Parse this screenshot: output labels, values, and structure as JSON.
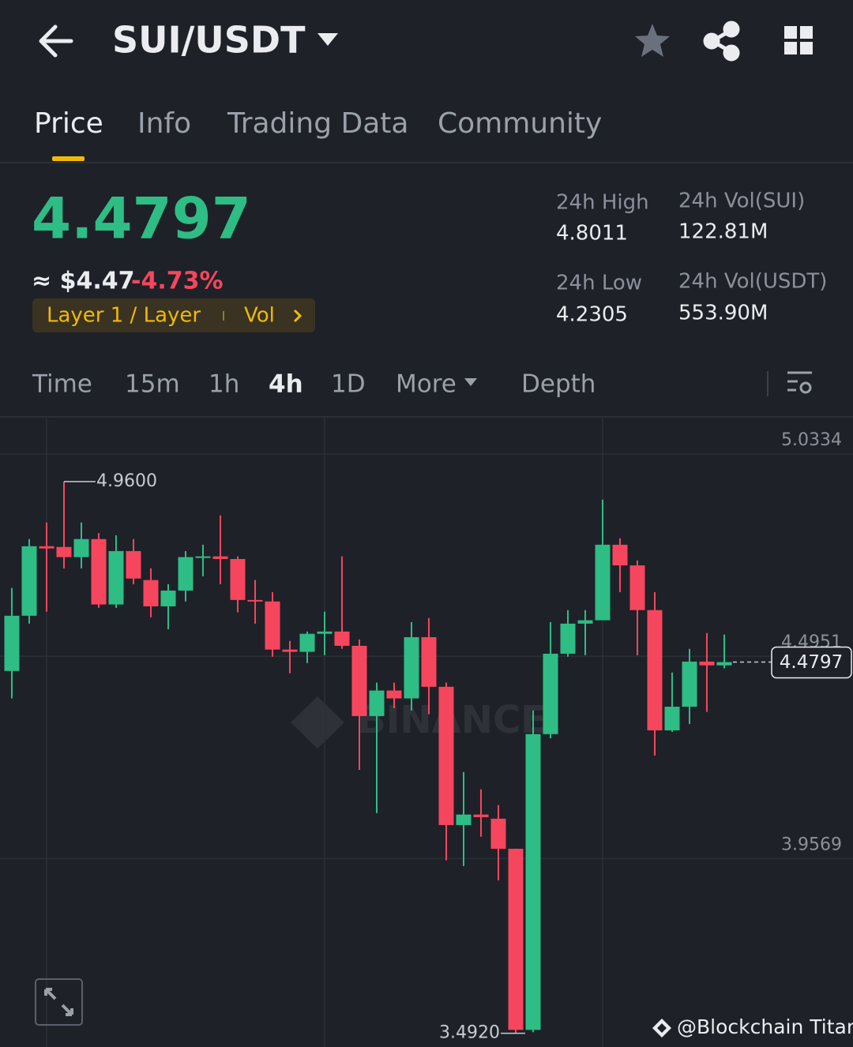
{
  "header": {
    "pair": "SUI/USDT"
  },
  "tabs": [
    "Price",
    "Info",
    "Trading Data",
    "Community"
  ],
  "price": {
    "last": "4.4797",
    "usd": "≈ $4.47",
    "change": "-4.73%",
    "tag": "Layer 1 / Layer",
    "tag_extra": "Vol"
  },
  "stats": [
    {
      "label": "24h High",
      "value": "4.8011"
    },
    {
      "label": "24h Low",
      "value": "4.2305"
    },
    {
      "label": "24h Vol(SUI)",
      "value": "122.81M"
    },
    {
      "label": "24h Vol(USDT)",
      "value": "553.90M"
    }
  ],
  "intervals": [
    "Time",
    "15m",
    "1h",
    "4h",
    "1D",
    "More",
    "Depth"
  ],
  "watermark": "BINANCE",
  "credit": "@Blockchain Titan",
  "chart_data": {
    "type": "candlestick",
    "open": [
      4.456,
      4.603,
      4.788,
      4.786,
      4.759,
      4.807,
      4.633,
      4.775,
      4.698,
      4.628,
      4.67,
      4.759,
      4.761,
      4.754,
      4.645,
      4.641,
      4.513,
      4.507,
      4.555,
      4.561,
      4.523,
      4.336,
      4.404,
      4.383,
      4.546,
      4.414,
      4.046,
      4.074,
      4.063,
      3.983,
      3.501,
      4.288,
      4.502,
      4.582,
      4.591,
      4.792,
      4.737,
      4.618,
      4.298,
      4.361,
      4.481,
      4.471
    ],
    "high": [
      4.677,
      4.807,
      4.851,
      4.96,
      4.851,
      4.823,
      4.817,
      4.807,
      4.729,
      4.687,
      4.775,
      4.792,
      4.87,
      4.761,
      4.698,
      4.666,
      4.536,
      4.561,
      4.614,
      4.761,
      4.54,
      4.425,
      4.425,
      4.586,
      4.597,
      4.425,
      4.187,
      4.141,
      4.099,
      3.983,
      4.351,
      4.586,
      4.618,
      4.618,
      4.912,
      4.809,
      4.75,
      4.666,
      4.452,
      4.515,
      4.557,
      4.553
    ],
    "low": [
      4.383,
      4.582,
      4.614,
      4.729,
      4.729,
      4.624,
      4.624,
      4.687,
      4.599,
      4.567,
      4.641,
      4.708,
      4.687,
      4.612,
      4.582,
      4.494,
      4.45,
      4.477,
      4.498,
      4.515,
      4.193,
      4.078,
      4.357,
      4.351,
      4.341,
      3.952,
      3.937,
      4.015,
      3.899,
      3.492,
      3.495,
      4.277,
      4.494,
      4.498,
      4.591,
      4.666,
      4.498,
      4.231,
      4.294,
      4.315,
      4.347,
      4.463
    ],
    "close": [
      4.603,
      4.788,
      4.782,
      4.759,
      4.807,
      4.633,
      4.775,
      4.702,
      4.628,
      4.67,
      4.759,
      4.761,
      4.754,
      4.645,
      4.641,
      4.513,
      4.507,
      4.555,
      4.561,
      4.523,
      4.336,
      4.404,
      4.383,
      4.546,
      4.414,
      4.046,
      4.074,
      4.067,
      3.983,
      3.501,
      4.288,
      4.502,
      4.582,
      4.591,
      4.792,
      4.737,
      4.618,
      4.298,
      4.361,
      4.481,
      4.471,
      4.4797
    ],
    "up_color": "#2ebd85",
    "down_color": "#f6465d",
    "ylim": [
      3.4555,
      5.1279
    ],
    "yticks": [
      5.0334,
      4.4951,
      3.9569
    ],
    "grid": true,
    "high_label": {
      "value": 4.96,
      "label": "4.9600"
    },
    "low_label": {
      "value": 3.492,
      "label": "3.4920"
    },
    "last_price": 4.4797
  }
}
